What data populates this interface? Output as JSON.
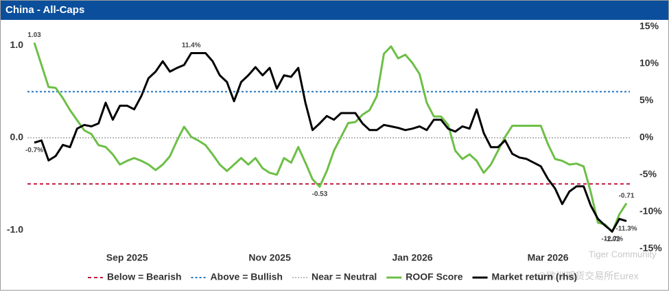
{
  "chart_data": {
    "type": "line",
    "title": "China - All-Caps",
    "categories": [
      null,
      null,
      null,
      null,
      null,
      null,
      null,
      null,
      null,
      null,
      null,
      null,
      null,
      "Sep 2025",
      null,
      null,
      null,
      null,
      null,
      null,
      null,
      null,
      null,
      null,
      null,
      null,
      null,
      null,
      null,
      null,
      null,
      null,
      null,
      "Nov 2025",
      null,
      null,
      null,
      null,
      null,
      null,
      null,
      null,
      null,
      null,
      null,
      null,
      null,
      null,
      null,
      null,
      null,
      null,
      null,
      "Jan 2026",
      null,
      null,
      null,
      null,
      null,
      null,
      null,
      null,
      null,
      null,
      null,
      null,
      null,
      null,
      null,
      null,
      null,
      null,
      "Mar 2026",
      null,
      null,
      null,
      null,
      null,
      null,
      null,
      null,
      null,
      null,
      null
    ],
    "series": [
      {
        "name": "ROOF Score",
        "color": "#6cbf45",
        "values": [
          1.03,
          0.79,
          0.55,
          0.54,
          0.43,
          0.3,
          0.19,
          0.08,
          0.04,
          -0.08,
          -0.1,
          -0.18,
          -0.29,
          -0.25,
          -0.22,
          -0.25,
          -0.29,
          -0.35,
          -0.29,
          -0.2,
          -0.03,
          0.12,
          0.01,
          -0.03,
          -0.08,
          -0.18,
          -0.29,
          -0.36,
          -0.29,
          -0.22,
          -0.29,
          -0.22,
          -0.33,
          -0.38,
          -0.4,
          -0.22,
          -0.27,
          -0.1,
          -0.27,
          -0.45,
          -0.53,
          -0.36,
          -0.14,
          0.01,
          0.16,
          0.17,
          0.25,
          0.3,
          0.45,
          0.91,
          0.99,
          0.86,
          0.9,
          0.81,
          0.69,
          0.38,
          0.23,
          0.23,
          0.14,
          -0.14,
          -0.23,
          -0.18,
          -0.25,
          -0.38,
          -0.29,
          -0.14,
          0.01,
          0.13,
          0.13,
          0.13,
          0.13,
          0.13,
          -0.07,
          -0.23,
          -0.25,
          -0.29,
          -0.28,
          -0.31,
          -0.59,
          -0.92,
          -0.94,
          -1.02,
          -0.83,
          -0.71
        ],
        "value_labels": [
          "1.03",
          null,
          null,
          null,
          null,
          null,
          null,
          null,
          null,
          null,
          null,
          null,
          null,
          null,
          null,
          null,
          null,
          null,
          null,
          null,
          null,
          null,
          null,
          null,
          null,
          null,
          null,
          null,
          null,
          null,
          null,
          null,
          null,
          null,
          null,
          null,
          null,
          null,
          null,
          null,
          "-0.53",
          null,
          null,
          null,
          null,
          null,
          null,
          null,
          null,
          null,
          null,
          null,
          null,
          null,
          null,
          null,
          null,
          null,
          null,
          null,
          null,
          null,
          null,
          null,
          null,
          null,
          null,
          null,
          null,
          null,
          null,
          null,
          null,
          null,
          null,
          null,
          null,
          null,
          null,
          null,
          null,
          "-1.02",
          null,
          "-0.71"
        ]
      },
      {
        "name": "Market return (rhs)",
        "color": "#000000",
        "axis": "y2",
        "values": [
          -0.7,
          -0.4,
          -3.1,
          -2.5,
          -1.0,
          -1.3,
          1.2,
          1.7,
          1.5,
          1.9,
          4.7,
          2.4,
          4.3,
          4.3,
          3.8,
          5.6,
          8.0,
          8.9,
          10.3,
          8.9,
          9.4,
          9.8,
          11.4,
          11.4,
          11.4,
          10.3,
          8.4,
          7.5,
          4.9,
          7.5,
          8.4,
          9.5,
          8.4,
          9.4,
          6.6,
          8.4,
          8.2,
          9.4,
          4.7,
          1.0,
          1.9,
          2.9,
          2.4,
          3.3,
          3.3,
          3.3,
          1.9,
          1.0,
          1.0,
          1.7,
          1.5,
          1.3,
          1.0,
          1.2,
          1.5,
          1.0,
          2.4,
          2.4,
          1.2,
          0.8,
          1.5,
          1.2,
          3.8,
          0.6,
          -1.3,
          -1.3,
          -0.4,
          -2.2,
          -2.7,
          -2.9,
          -3.4,
          -3.9,
          -5.6,
          -6.9,
          -9.0,
          -7.3,
          -6.6,
          -6.6,
          -9.2,
          -11.0,
          -11.9,
          -12.7,
          -11.0,
          -11.3
        ],
        "value_labels": [
          "-0.7%",
          null,
          null,
          null,
          null,
          null,
          null,
          null,
          null,
          null,
          null,
          null,
          null,
          null,
          null,
          null,
          null,
          null,
          null,
          null,
          null,
          null,
          "11.4%",
          null,
          null,
          null,
          null,
          null,
          null,
          null,
          null,
          null,
          null,
          null,
          null,
          null,
          null,
          null,
          null,
          null,
          null,
          null,
          null,
          null,
          null,
          null,
          null,
          null,
          null,
          null,
          null,
          null,
          null,
          null,
          null,
          null,
          null,
          null,
          null,
          null,
          null,
          null,
          null,
          null,
          null,
          null,
          null,
          null,
          null,
          null,
          null,
          null,
          null,
          null,
          null,
          null,
          null,
          null,
          null,
          null,
          null,
          "-12.7%",
          null,
          "-11.3%"
        ]
      }
    ],
    "reference_lines": [
      {
        "name": "Below = Bearish",
        "value": -0.5,
        "color": "#c0143c",
        "dash": "5 4"
      },
      {
        "name": "Above = Bullish",
        "value": 0.5,
        "color": "#1f77c4",
        "dash": "3 3"
      },
      {
        "name": "Near = Neutral",
        "value": 0,
        "color": "#bbbbbb",
        "dash": "2 2"
      }
    ],
    "ylim": [
      -1.24,
      1.27
    ],
    "yticks": [
      {
        "value": -1,
        "label": "-1.0"
      },
      {
        "value": 0,
        "label": "0.0"
      },
      {
        "value": 1,
        "label": "1.0"
      }
    ],
    "y2lim": [
      -15.5,
      15.8
    ],
    "y2ticks": [
      {
        "value": -15,
        "label": "-15%"
      },
      {
        "value": -10,
        "label": "-10%"
      },
      {
        "value": -5,
        "label": "-5%"
      },
      {
        "value": 0,
        "label": "0%"
      },
      {
        "value": 5,
        "label": "5%"
      },
      {
        "value": 10,
        "label": "10%"
      },
      {
        "value": 15,
        "label": "15%"
      }
    ],
    "watermark": [
      "Tiger Community",
      "@欧洲期货交易所Eurex"
    ]
  }
}
